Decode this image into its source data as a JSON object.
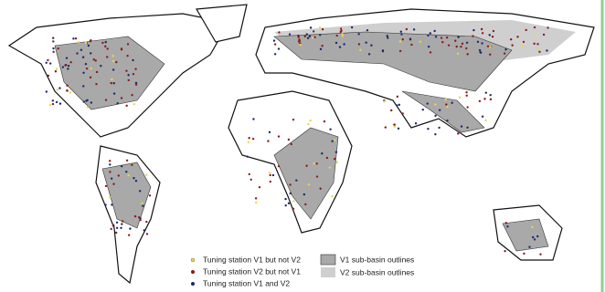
{
  "legend": {
    "stations": [
      {
        "label": "Tuning station V1 but not V2"
      },
      {
        "label": "Tuning station V2 but not V1"
      },
      {
        "label": "Tuning station V1 and V2"
      }
    ],
    "basins": [
      {
        "label": "V1 sub-basin outlines"
      },
      {
        "label": "V2 sub-basin outlines"
      }
    ]
  }
}
